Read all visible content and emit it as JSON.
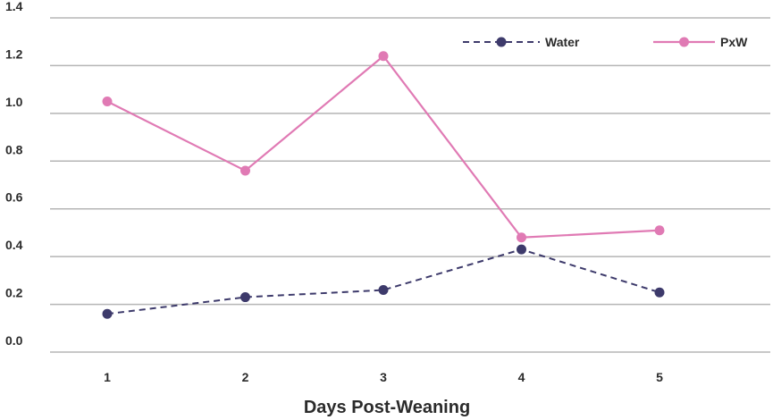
{
  "chart_data": {
    "type": "line",
    "title": "",
    "xlabel": "Days Post-Weaning",
    "ylabel": "",
    "x": [
      1,
      2,
      3,
      4,
      5
    ],
    "x_tick_labels": [
      "1",
      "2",
      "3",
      "4",
      "5"
    ],
    "y_tick_labels": [
      "0.0",
      "0.2",
      "0.4",
      "0.6",
      "0.8",
      "1.0",
      "1.2",
      "1.4"
    ],
    "y_ticks": [
      0,
      0.2,
      0.4,
      0.6,
      0.8,
      1.0,
      1.2,
      1.4
    ],
    "ylim": [
      0,
      1.4
    ],
    "grid": "horizontal",
    "legend_position": "top-right",
    "series": [
      {
        "name": "Water",
        "values": [
          0.16,
          0.23,
          0.26,
          0.43,
          0.25
        ],
        "color": "#3d3a6b",
        "line_style": "dashed"
      },
      {
        "name": "PxW",
        "values": [
          1.05,
          0.76,
          1.24,
          0.48,
          0.51
        ],
        "color": "#e07ab4",
        "line_style": "solid"
      }
    ]
  }
}
